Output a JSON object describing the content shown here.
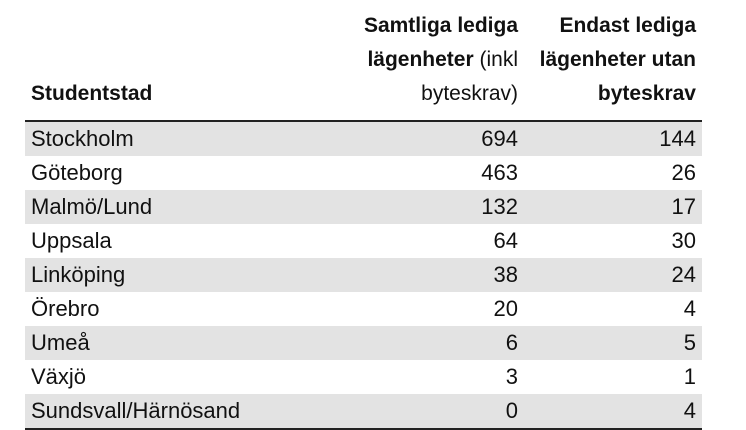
{
  "table": {
    "headers": {
      "city": "Studentstad",
      "all_bold": "Samtliga lediga lägenheter",
      "all_normal": " (inkl byteskrav)",
      "only": "Endast lediga lägenheter utan byteskrav"
    },
    "rows": [
      {
        "city": "Stockholm",
        "all": "694",
        "only": "144"
      },
      {
        "city": "Göteborg",
        "all": "463",
        "only": "26"
      },
      {
        "city": "Malmö/Lund",
        "all": "132",
        "only": "17"
      },
      {
        "city": "Uppsala",
        "all": "64",
        "only": "30"
      },
      {
        "city": "Linköping",
        "all": "38",
        "only": "24"
      },
      {
        "city": "Örebro",
        "all": "20",
        "only": "4"
      },
      {
        "city": "Umeå",
        "all": "6",
        "only": "5"
      },
      {
        "city": "Växjö",
        "all": "3",
        "only": "1"
      },
      {
        "city": "Sundsvall/Härnösand",
        "all": "0",
        "only": "4"
      }
    ]
  }
}
